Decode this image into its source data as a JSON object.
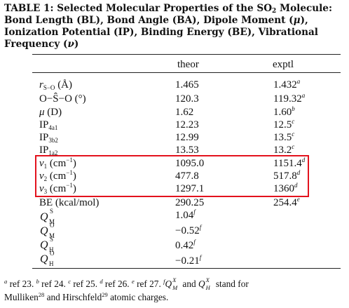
{
  "table": {
    "caption": {
      "prefix": "TABLE 1:  Selected Molecular Properties of the SO",
      "prefix_sub": "2",
      "rest1": " Molecule:  Bond Length (BL), Bond Angle (BA), Dipole Moment (",
      "mu": "μ",
      "rest2": "), Ionization Potential (IP), Binding Energy (BE), Vibrational Frequency (",
      "nu": "ν",
      "rest3": ")"
    },
    "columns": [
      "theor",
      "exptl"
    ],
    "rows": [
      {
        "label_main": "r",
        "label_sub": "S−O",
        "label_tail": " (Å)",
        "theor": "1.465",
        "exptl": "1.432",
        "exptl_note": "a"
      },
      {
        "label_main": "O−Ŝ−O (°)",
        "label_sub": "",
        "label_tail": "",
        "theor": "120.3",
        "exptl": "119.32",
        "exptl_note": "a"
      },
      {
        "label_main": "μ",
        "label_sub": "",
        "label_tail": " (D)",
        "theor": "1.62",
        "exptl": "1.60",
        "exptl_note": "b"
      },
      {
        "label_main": "IP",
        "label_sub": "4a1",
        "label_tail": "",
        "theor": "12.23",
        "exptl": "12.5",
        "exptl_note": "c"
      },
      {
        "label_main": "IP",
        "label_sub": "3b2",
        "label_tail": "",
        "theor": "12.99",
        "exptl": "13.5",
        "exptl_note": "c"
      },
      {
        "label_main": "IP",
        "label_sub": "1a2",
        "label_tail": "",
        "theor": "13.53",
        "exptl": "13.2",
        "exptl_note": "c"
      },
      {
        "label_main": "ν",
        "label_sub": "1",
        "label_tail": " (cm",
        "label_pow": "−1",
        "label_close": ")",
        "theor": "1095.0",
        "exptl": "1151.4",
        "exptl_note": "d"
      },
      {
        "label_main": "ν",
        "label_sub": "2",
        "label_tail": " (cm",
        "label_pow": "−1",
        "label_close": ")",
        "theor": "477.8",
        "exptl": "517.8",
        "exptl_note": "d"
      },
      {
        "label_main": "ν",
        "label_sub": "3",
        "label_tail": " (cm",
        "label_pow": "−1",
        "label_close": ")",
        "theor": "1297.1",
        "exptl": "1360",
        "exptl_note": "d"
      },
      {
        "label_main": "BE (kcal/mol)",
        "label_sub": "",
        "label_tail": "",
        "theor": "290.25",
        "exptl": "254.4",
        "exptl_note": "e"
      }
    ],
    "charges": [
      {
        "sym": "Q",
        "sup": "S",
        "sub": "M",
        "theor": "1.04",
        "note": "f"
      },
      {
        "sym": "Q",
        "sup": "O",
        "sub": "M",
        "theor": "−0.52",
        "note": "f"
      },
      {
        "sym": "Q",
        "sup": "S",
        "sub": "H",
        "theor": "0.42",
        "note": "f"
      },
      {
        "sym": "Q",
        "sup": "O",
        "sub": "H",
        "theor": "−0.21",
        "note": "f"
      }
    ],
    "footnotes": {
      "a_mark": "a",
      "a_text": " ref 23. ",
      "b_mark": "b",
      "b_text": " ref 24. ",
      "c_mark": "c",
      "c_text": " ref 25. ",
      "d_mark": "d",
      "d_text": " ref 26. ",
      "e_mark": "e",
      "e_text": " ref 27. ",
      "f_mark": "f",
      "q1": "Q",
      "q1_sup": "X",
      "q1_sub": "M",
      "and": " and ",
      "q2": "Q",
      "q2_sup": "X",
      "q2_sub": "H",
      "stand_for": " stand for",
      "mulliken": "Mulliken",
      "mulliken_ref": "28",
      "and_hirsch": " and Hirschfeld",
      "hirsch_ref": "29",
      "tail": " atomic charges."
    },
    "highlight_color": "#e3121d"
  }
}
